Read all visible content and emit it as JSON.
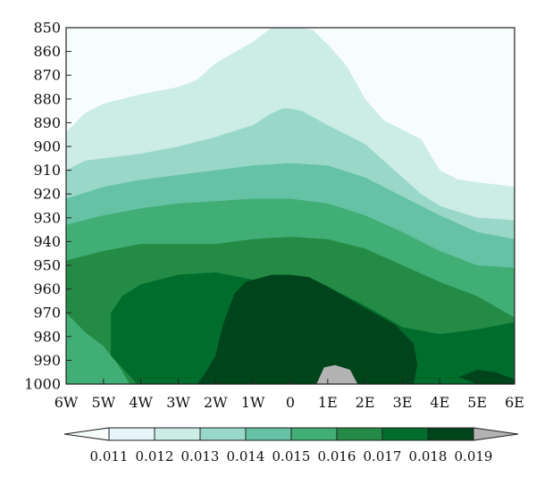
{
  "chart_data": {
    "type": "heatmap",
    "subtype": "filled-contour",
    "title": "",
    "xlabel": "",
    "ylabel": "",
    "x_ticks": [
      "6W",
      "5W",
      "4W",
      "3W",
      "2W",
      "1W",
      "0",
      "1E",
      "2E",
      "3E",
      "4E",
      "5E",
      "6E"
    ],
    "y_ticks": [
      850,
      860,
      870,
      880,
      890,
      900,
      910,
      920,
      930,
      940,
      950,
      960,
      970,
      980,
      990,
      1000
    ],
    "xlim": [
      -6,
      6
    ],
    "ylim": [
      850,
      1000
    ],
    "y_inverted": true,
    "grid": false,
    "colorbar": {
      "position": "bottom",
      "extend": "both",
      "levels": [
        0.011,
        0.012,
        0.013,
        0.014,
        0.015,
        0.016,
        0.017,
        0.018,
        0.019
      ],
      "colors": [
        "#f7fcfd",
        "#e5f5f9",
        "#ccece6",
        "#99d8c9",
        "#66c2a4",
        "#41ae76",
        "#238b45",
        "#006d2c",
        "#00441b",
        "#b3b3b3"
      ]
    },
    "contours": [
      {
        "level": 0.012,
        "points": [
          [
            -6,
            894
          ],
          [
            -5.5,
            886
          ],
          [
            -5,
            882
          ],
          [
            -4,
            878
          ],
          [
            -3,
            875
          ],
          [
            -2.5,
            872
          ],
          [
            -2,
            865
          ],
          [
            -1,
            856
          ],
          [
            -0.5,
            850
          ],
          [
            0.3,
            850
          ],
          [
            0.6,
            851
          ],
          [
            1,
            857
          ],
          [
            1.5,
            866
          ],
          [
            2,
            880
          ],
          [
            2.5,
            889
          ],
          [
            3,
            893
          ],
          [
            3.5,
            897
          ],
          [
            4,
            910
          ],
          [
            4.5,
            914
          ],
          [
            6,
            917
          ]
        ]
      },
      {
        "level": 0.013,
        "points": [
          [
            -6,
            910
          ],
          [
            -5.5,
            906
          ],
          [
            -5,
            905
          ],
          [
            -4,
            903
          ],
          [
            -3,
            900
          ],
          [
            -2,
            896
          ],
          [
            -1,
            891
          ],
          [
            -0.5,
            886
          ],
          [
            -0.2,
            884
          ],
          [
            0,
            884
          ],
          [
            0.3,
            885
          ],
          [
            1,
            891
          ],
          [
            2,
            899
          ],
          [
            2.5,
            906
          ],
          [
            3,
            913
          ],
          [
            3.5,
            920
          ],
          [
            4,
            925
          ],
          [
            5,
            930
          ],
          [
            6,
            931
          ]
        ]
      },
      {
        "level": 0.014,
        "points": [
          [
            -6,
            922
          ],
          [
            -5,
            917
          ],
          [
            -4,
            914
          ],
          [
            -3,
            912
          ],
          [
            -2,
            910
          ],
          [
            -1,
            908
          ],
          [
            0,
            907
          ],
          [
            1,
            908
          ],
          [
            2,
            913
          ],
          [
            3,
            921
          ],
          [
            4,
            929
          ],
          [
            5,
            936
          ],
          [
            6,
            939
          ]
        ]
      },
      {
        "level": 0.015,
        "points": [
          [
            -6,
            933
          ],
          [
            -5,
            929
          ],
          [
            -4,
            926
          ],
          [
            -3,
            924
          ],
          [
            -2,
            923
          ],
          [
            -1,
            922
          ],
          [
            0,
            922
          ],
          [
            1,
            924
          ],
          [
            2,
            929
          ],
          [
            3,
            936
          ],
          [
            4,
            944
          ],
          [
            5,
            950
          ],
          [
            6,
            951
          ]
        ]
      },
      {
        "level": 0.016,
        "points": [
          [
            -6,
            948
          ],
          [
            -5,
            944
          ],
          [
            -4,
            941
          ],
          [
            -3,
            941
          ],
          [
            -2,
            941
          ],
          [
            -1,
            939
          ],
          [
            0,
            938
          ],
          [
            1,
            939
          ],
          [
            2,
            943
          ],
          [
            3,
            950
          ],
          [
            4,
            957
          ],
          [
            5,
            963
          ],
          [
            6,
            972
          ]
        ]
      }
    ],
    "regions": [
      {
        "level": 0.014,
        "points": [
          [
            -6,
            1000
          ],
          [
            -6,
            980
          ],
          [
            -5.5,
            988
          ],
          [
            -5,
            994
          ],
          [
            -4.8,
            1000
          ]
        ]
      },
      {
        "level": 0.015,
        "points": [
          [
            -6,
            968
          ],
          [
            -5.5,
            978
          ],
          [
            -5,
            984
          ],
          [
            -4.6,
            992
          ],
          [
            -4.3,
            1000
          ],
          [
            -6,
            1000
          ]
        ]
      },
      {
        "level": 0.016,
        "points": [
          [
            -6,
            970
          ],
          [
            -5.8,
            963
          ],
          [
            -5.3,
            957
          ],
          [
            -5,
            954
          ],
          [
            -4.5,
            951
          ],
          [
            -4,
            949
          ],
          [
            -3,
            949
          ],
          [
            -2,
            950
          ],
          [
            -1,
            951
          ],
          [
            -0.5,
            953
          ],
          [
            0.3,
            954
          ],
          [
            1,
            956
          ],
          [
            2,
            963
          ],
          [
            3,
            973
          ],
          [
            4,
            977
          ],
          [
            5,
            975
          ],
          [
            6,
            973
          ],
          [
            6,
            1000
          ],
          [
            -4.3,
            1000
          ],
          [
            -4.6,
            992
          ],
          [
            -5,
            984
          ],
          [
            -5.5,
            978
          ]
        ]
      },
      {
        "level": 0.017,
        "points": [
          [
            -4.8,
            988
          ],
          [
            -4.8,
            970
          ],
          [
            -4.5,
            963
          ],
          [
            -4,
            958
          ],
          [
            -3,
            954
          ],
          [
            -2,
            953
          ],
          [
            -1,
            956
          ],
          [
            0,
            956
          ],
          [
            1,
            959
          ],
          [
            2,
            967
          ],
          [
            3,
            976
          ],
          [
            4,
            979
          ],
          [
            5,
            977
          ],
          [
            6,
            974
          ],
          [
            6,
            1000
          ],
          [
            -4.1,
            1000
          ]
        ]
      },
      {
        "level": 0.018,
        "points": [
          [
            -2.5,
            1000
          ],
          [
            -2.3,
            996
          ],
          [
            -2,
            988
          ],
          [
            -1.8,
            975
          ],
          [
            -1.5,
            962
          ],
          [
            -1.2,
            957
          ],
          [
            -0.5,
            954
          ],
          [
            0,
            954
          ],
          [
            0.5,
            955
          ],
          [
            1,
            959
          ],
          [
            2,
            968
          ],
          [
            2.8,
            975
          ],
          [
            3.3,
            983
          ],
          [
            3.4,
            992
          ],
          [
            3.3,
            1000
          ]
        ]
      },
      {
        "level": 0.018,
        "points": [
          [
            5,
            1000
          ],
          [
            4.5,
            997
          ],
          [
            5,
            994
          ],
          [
            5.5,
            995
          ],
          [
            6,
            998
          ],
          [
            6,
            1000
          ]
        ]
      },
      {
        "level": 0.019,
        "points": [
          [
            0.7,
            1000
          ],
          [
            0.9,
            993
          ],
          [
            1.2,
            992
          ],
          [
            1.6,
            994
          ],
          [
            1.8,
            1000
          ]
        ]
      }
    ]
  }
}
